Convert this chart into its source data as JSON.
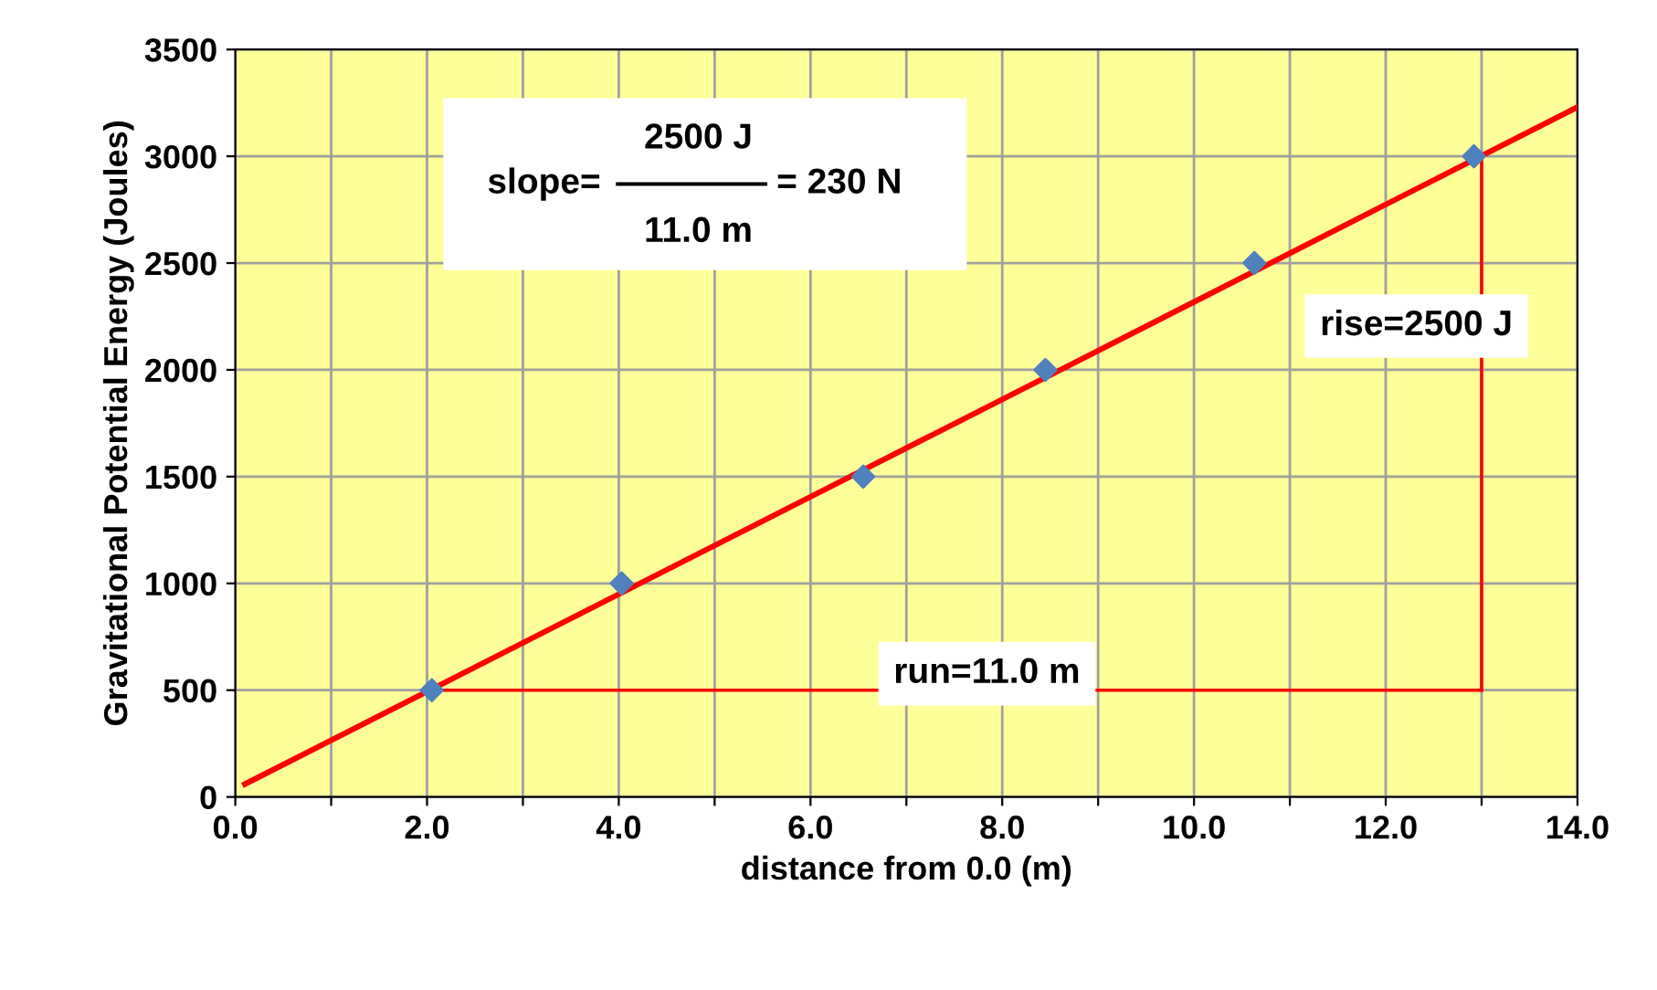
{
  "chart_data": {
    "type": "scatter",
    "xlabel": "distance from 0.0 (m)",
    "ylabel": "Gravitational Potential Energy (Joules)",
    "series": [
      {
        "marker": "diamond",
        "color": "#4f81bd",
        "x": [
          2.05,
          4.03,
          6.55,
          8.45,
          10.63,
          12.92
        ],
        "values": [
          500,
          1000,
          1500,
          2000,
          2500,
          3000
        ]
      },
      {
        "type": "line",
        "color": "#ff0000",
        "x": [
          0.1,
          14.0
        ],
        "values": [
          60,
          3230
        ]
      },
      {
        "type": "line",
        "color": "#ff0000",
        "x": [
          2.0,
          13.0
        ],
        "values": [
          500,
          500
        ]
      },
      {
        "type": "line",
        "color": "#ff0000",
        "x": [
          13.0,
          13.0
        ],
        "values": [
          500,
          3000
        ]
      }
    ],
    "annotations": [
      "slope=",
      "2500 J",
      "11.0 m",
      "= 230 N",
      "rise=2500 J",
      "run=11.0 m"
    ],
    "xlim": [
      0,
      14
    ],
    "ylim": [
      0,
      3500
    ],
    "xticks": [
      {
        "value": 0,
        "label": "0.0"
      },
      {
        "value": 1,
        "label": null
      },
      {
        "value": 2,
        "label": "2.0"
      },
      {
        "value": 3,
        "label": null
      },
      {
        "value": 4,
        "label": "4.0"
      },
      {
        "value": 5,
        "label": null
      },
      {
        "value": 6,
        "label": "6.0"
      },
      {
        "value": 7,
        "label": null
      },
      {
        "value": 8,
        "label": "8.0"
      },
      {
        "value": 9,
        "label": null
      },
      {
        "value": 10,
        "label": "10.0"
      },
      {
        "value": 11,
        "label": null
      },
      {
        "value": 12,
        "label": "12.0"
      },
      {
        "value": 13,
        "label": null
      },
      {
        "value": 14,
        "label": "14.0"
      }
    ],
    "yticks": [
      0,
      500,
      1000,
      1500,
      2000,
      2500,
      3000,
      3500
    ],
    "grid": true
  }
}
